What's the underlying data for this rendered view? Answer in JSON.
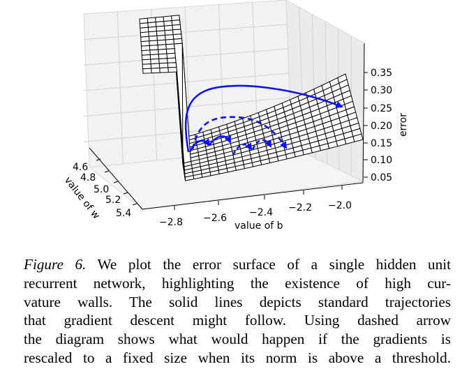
{
  "figure": {
    "zaxis": {
      "label": "error",
      "ticks": [
        "0.35",
        "0.30",
        "0.25",
        "0.20",
        "0.15",
        "0.10",
        "0.05"
      ]
    },
    "xaxis": {
      "label": "value of b",
      "ticks": [
        "−2.8",
        "−2.6",
        "−2.4",
        "−2.2",
        "−2.0"
      ]
    },
    "yaxis": {
      "label": "value of w",
      "ticks": [
        "4.6",
        "4.8",
        "5.0",
        "5.2",
        "5.4"
      ]
    },
    "colors": {
      "surface_line": "#000000",
      "surface_fill": "#ffffff",
      "pane": "#f2f2f2",
      "grid": "#d0d0d0",
      "trajectory": "#0b10ff"
    }
  },
  "caption": {
    "figure_label": "Figure 6.",
    "lines": [
      "We plot the error surface of a single hidden unit",
      "recurrent network, highlighting the existence of high cur-",
      "vature walls.  The solid lines depicts standard trajectories",
      "that gradient descent might follow.  Using dashed arrow",
      "the diagram shows what would happen if the gradients is",
      "rescaled to a fixed size when its norm is above a threshold."
    ]
  }
}
